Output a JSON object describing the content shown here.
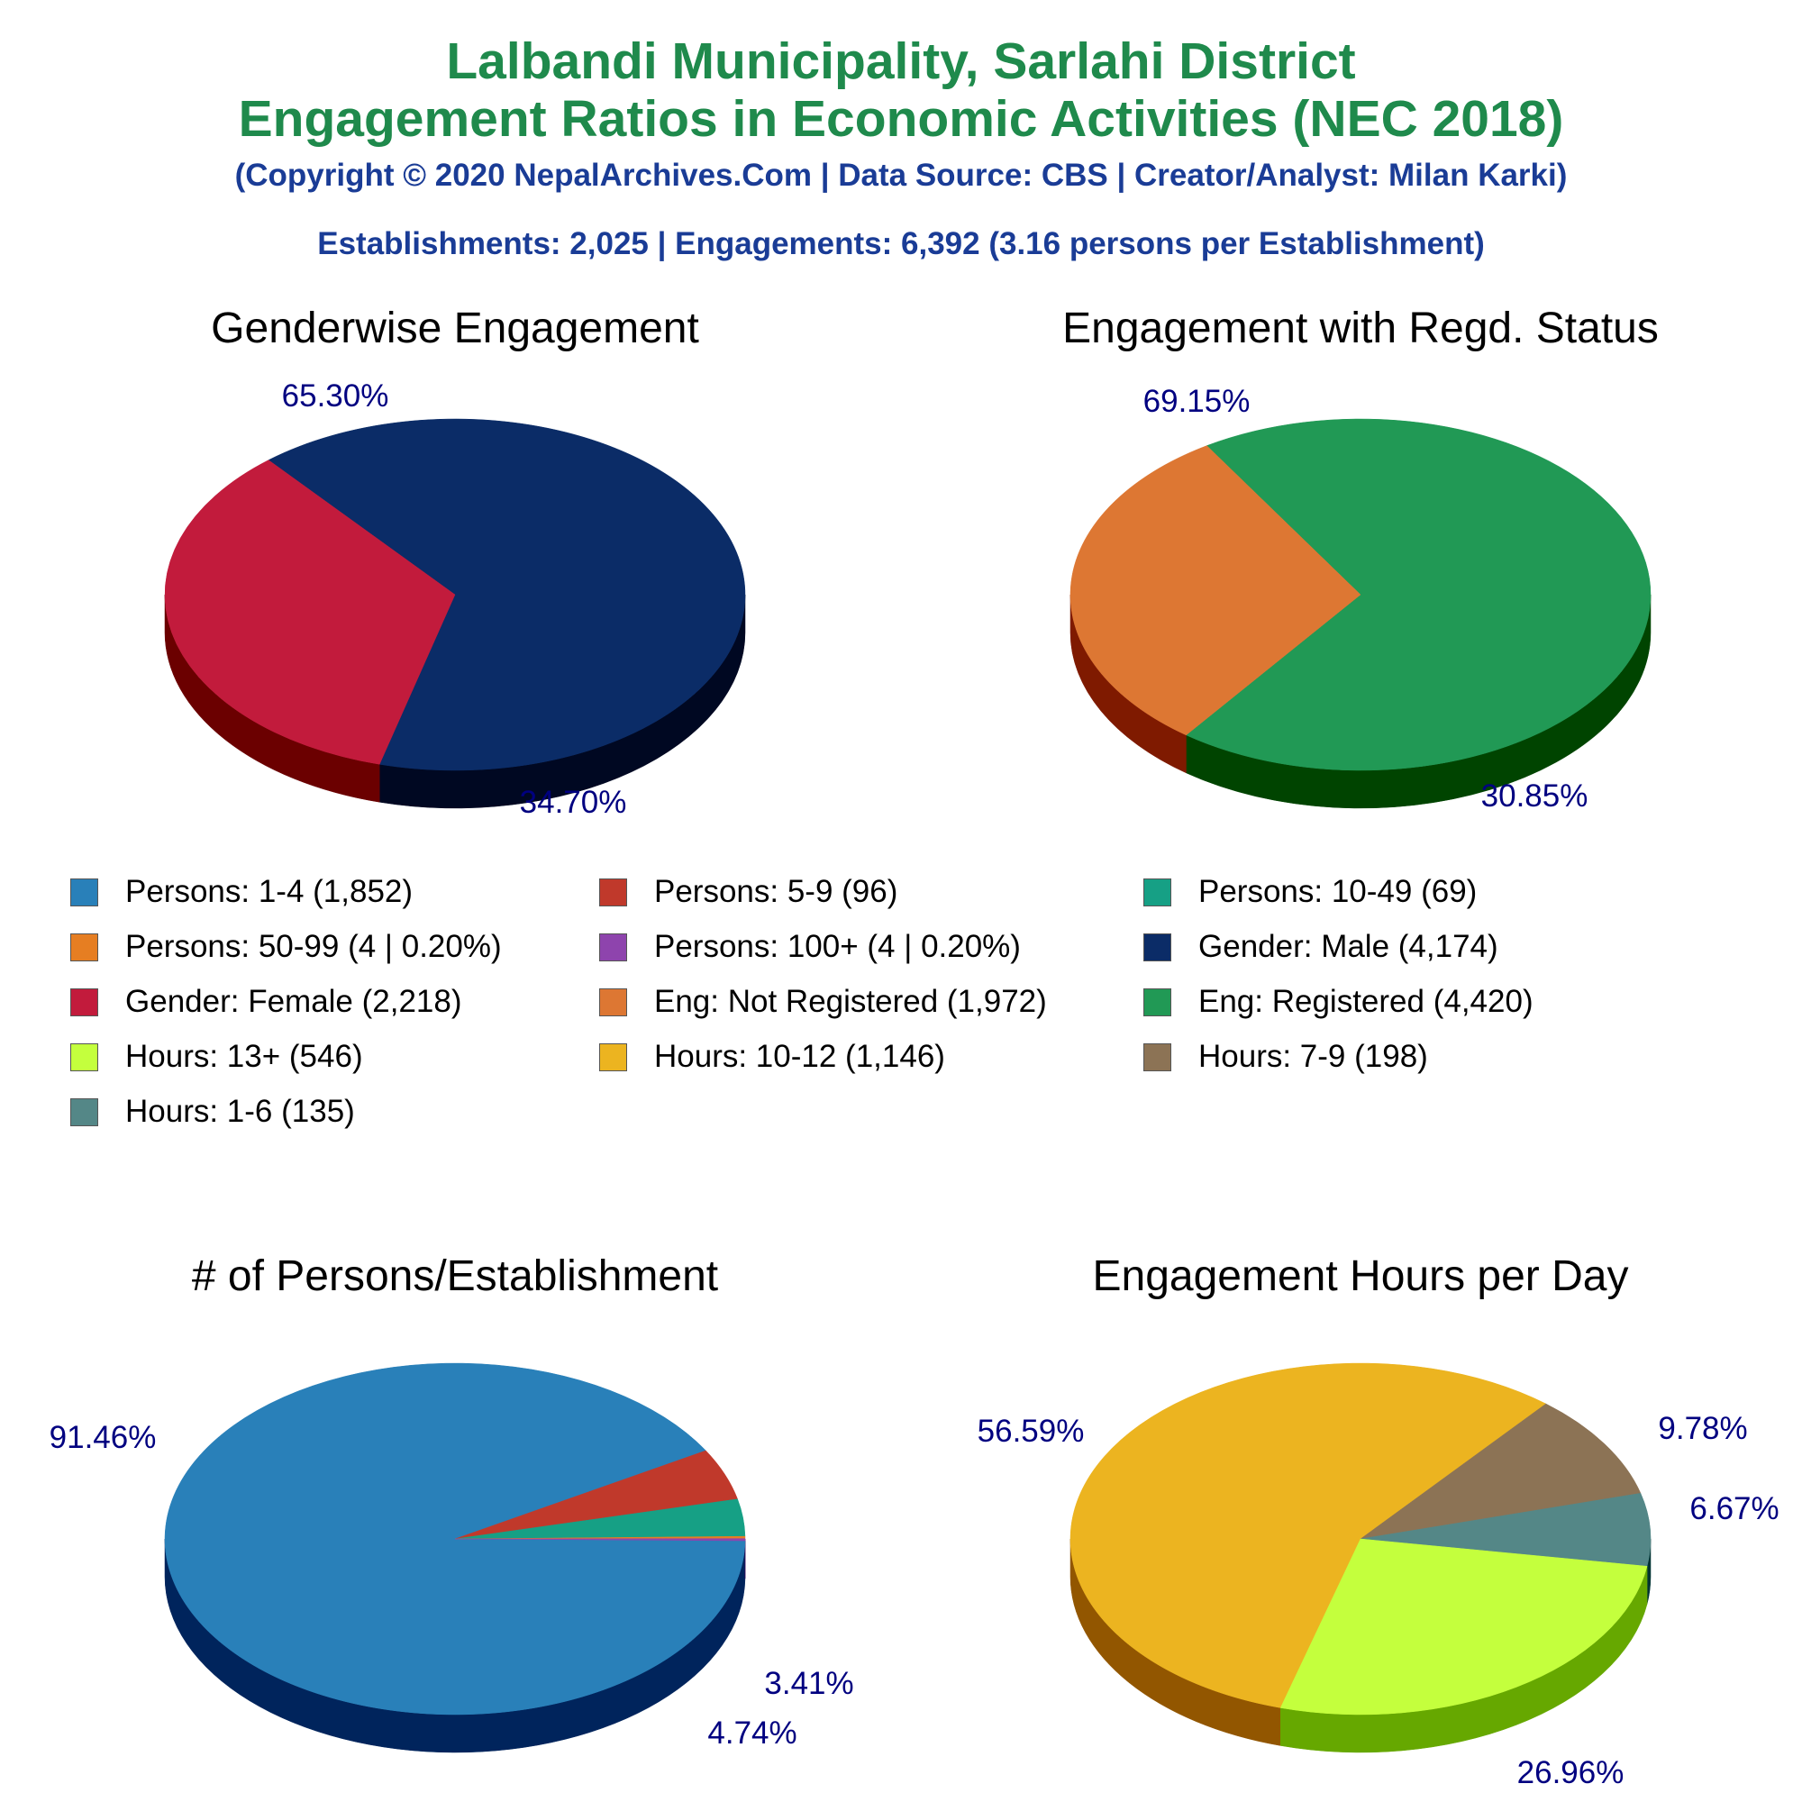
{
  "header": {
    "title_line1": "Lalbandi Municipality, Sarlahi District",
    "title_line2": "Engagement Ratios in Economic Activities (NEC 2018)",
    "copyright": "(Copyright © 2020 NepalArchives.Com | Data Source: CBS | Creator/Analyst: Milan Karki)",
    "summary": "Establishments: 2,025 | Engagements: 6,392 (3.16 persons per Establishment)"
  },
  "colors": {
    "title": "#1f8a4c",
    "subtitle": "#1a3c96",
    "pct_label": "#000080"
  },
  "legend": [
    {
      "label": "Persons: 1-4 (1,852)",
      "color": "#2980b9"
    },
    {
      "label": "Persons: 5-9 (96)",
      "color": "#c0392b"
    },
    {
      "label": "Persons: 10-49 (69)",
      "color": "#16a085"
    },
    {
      "label": "Persons: 50-99 (4 | 0.20%)",
      "color": "#e67e22"
    },
    {
      "label": "Persons: 100+ (4 | 0.20%)",
      "color": "#8e44ad"
    },
    {
      "label": "Gender: Male (4,174)",
      "color": "#0b2c67"
    },
    {
      "label": "Gender: Female (2,218)",
      "color": "#c21b3c"
    },
    {
      "label": "Eng: Not Registered (1,972)",
      "color": "#dd7733"
    },
    {
      "label": "Eng: Registered (4,420)",
      "color": "#219955"
    },
    {
      "label": "Hours: 13+ (546)",
      "color": "#c4ff3d"
    },
    {
      "label": "Hours: 10-12 (1,146)",
      "color": "#ecb420"
    },
    {
      "label": "Hours: 7-9 (198)",
      "color": "#8c7355"
    },
    {
      "label": "Hours: 1-6 (135)",
      "color": "#548787"
    }
  ],
  "chart_data": [
    {
      "type": "pie",
      "title": "Genderwise Engagement",
      "slices": [
        {
          "label": "Gender: Male",
          "value": 65.3,
          "display": "65.30%",
          "color": "#0b2c67",
          "side": "#000822"
        },
        {
          "label": "Gender: Female",
          "value": 34.7,
          "display": "34.70%",
          "color": "#c21b3c",
          "side": "#6b0000"
        }
      ]
    },
    {
      "type": "pie",
      "title": "Engagement with Regd. Status",
      "slices": [
        {
          "label": "Eng: Registered",
          "value": 69.15,
          "display": "69.15%",
          "color": "#219955",
          "side": "#004400"
        },
        {
          "label": "Eng: Not Registered",
          "value": 30.85,
          "display": "30.85%",
          "color": "#dd7733",
          "side": "#7f1a00"
        }
      ]
    },
    {
      "type": "pie",
      "title": "# of Persons/Establishment",
      "slices": [
        {
          "label": "Persons: 1-4",
          "value": 91.46,
          "display": "91.46%",
          "color": "#2980b9",
          "side": "#00245c"
        },
        {
          "label": "Persons: 5-9",
          "value": 4.74,
          "display": "4.74%",
          "color": "#c0392b",
          "side": "#6b0000"
        },
        {
          "label": "Persons: 10-49",
          "value": 3.41,
          "display": "3.41%",
          "color": "#16a085",
          "side": "#004433"
        },
        {
          "label": "Persons: 50-99",
          "value": 0.2,
          "display": "",
          "color": "#e67e22",
          "side": "#8a2e00"
        },
        {
          "label": "Persons: 100+",
          "value": 0.2,
          "display": "",
          "color": "#8e44ad",
          "side": "#3a0055"
        }
      ]
    },
    {
      "type": "pie",
      "title": "Engagement Hours per Day",
      "slices": [
        {
          "label": "Hours: 10-12",
          "value": 56.59,
          "display": "56.59%",
          "color": "#ecb420",
          "side": "#925600"
        },
        {
          "label": "Hours: 7-9",
          "value": 9.78,
          "display": "9.78%",
          "color": "#8c7355",
          "side": "#3a2200"
        },
        {
          "label": "Hours: 1-6",
          "value": 6.67,
          "display": "6.67%",
          "color": "#548787",
          "side": "#003333"
        },
        {
          "label": "Hours: 13+",
          "value": 26.96,
          "display": "26.96%",
          "color": "#c4ff3d",
          "side": "#66a800"
        }
      ]
    }
  ]
}
